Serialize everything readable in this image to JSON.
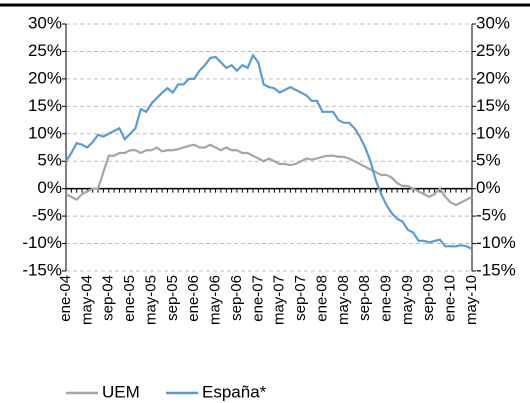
{
  "chart_data": {
    "type": "line",
    "categories": [
      "ene-04",
      null,
      null,
      null,
      "may-04",
      null,
      null,
      null,
      "sep-04",
      null,
      null,
      null,
      "ene-05",
      null,
      null,
      null,
      "may-05",
      null,
      null,
      null,
      "sep-05",
      null,
      null,
      null,
      "ene-06",
      null,
      null,
      null,
      "may-06",
      null,
      null,
      null,
      "sep-06",
      null,
      null,
      null,
      "ene-07",
      null,
      null,
      null,
      "may-07",
      null,
      null,
      null,
      "sep-07",
      null,
      null,
      null,
      "ene-08",
      null,
      null,
      null,
      "may-08",
      null,
      null,
      null,
      "sep-08",
      null,
      null,
      null,
      "ene-09",
      null,
      null,
      null,
      "may-09",
      null,
      null,
      null,
      "sep-09",
      null,
      null,
      null,
      "ene-10",
      null,
      null,
      null,
      "may-10"
    ],
    "series": [
      {
        "name": "UEM",
        "color": "#a6a6a6",
        "values": [
          -1,
          -1.5,
          -2,
          -1,
          -0.5,
          0,
          0,
          3,
          6,
          6,
          6.5,
          6.5,
          7,
          7,
          6.5,
          7,
          7,
          7.5,
          6.8,
          7,
          7,
          7.2,
          7.5,
          7.8,
          8,
          7.5,
          7.5,
          8,
          7.5,
          7,
          7.5,
          7,
          7,
          6.5,
          6.5,
          6,
          5.5,
          5,
          5.5,
          5,
          4.5,
          4.5,
          4.3,
          4.5,
          5,
          5.5,
          5.3,
          5.5,
          5.8,
          6,
          6,
          5.8,
          5.8,
          5.5,
          5,
          4.5,
          4,
          3.5,
          3,
          2.5,
          2.5,
          2,
          1,
          0.5,
          0.5,
          0,
          -0.5,
          -1,
          -1.5,
          -1,
          0,
          -1.5,
          -2.5,
          -3,
          -2.5,
          -2,
          -1.5
        ]
      },
      {
        "name": "España*",
        "color": "#5b9bd5",
        "values": [
          5,
          6.5,
          8.3,
          8,
          7.5,
          8.5,
          9.8,
          9.5,
          10,
          10.5,
          11,
          9,
          10,
          11,
          14.5,
          14,
          15.5,
          16.5,
          17.5,
          18.3,
          17.5,
          19,
          19,
          20,
          20,
          21.5,
          22.5,
          23.8,
          24,
          23,
          22,
          22.5,
          21.5,
          22.5,
          22,
          24.3,
          23,
          19,
          18.5,
          18.3,
          17.5,
          18,
          18.5,
          18,
          17.5,
          17,
          16,
          16,
          14,
          14,
          14,
          12.5,
          12,
          12,
          11,
          9.5,
          7.5,
          5,
          1.5,
          -1,
          -3,
          -4.5,
          -5.5,
          -6,
          -7.5,
          -8,
          -9.5,
          -9.5,
          -9.8,
          -9.5,
          -9.3,
          -10.5,
          -10.5,
          -10.5,
          -10.3,
          -10.5,
          -11
        ]
      }
    ],
    "ylim": [
      -15,
      30
    ],
    "yticks": [
      {
        "value": -15,
        "label": "-15%"
      },
      {
        "value": -10,
        "label": "-10%"
      },
      {
        "value": -5,
        "label": "-5%"
      },
      {
        "value": 0,
        "label": "0%"
      },
      {
        "value": 5,
        "label": "5%"
      },
      {
        "value": 10,
        "label": "10%"
      },
      {
        "value": 15,
        "label": "15%"
      },
      {
        "value": 20,
        "label": "20%"
      },
      {
        "value": 25,
        "label": "25%"
      },
      {
        "value": 30,
        "label": "30%"
      }
    ],
    "grid": true
  }
}
